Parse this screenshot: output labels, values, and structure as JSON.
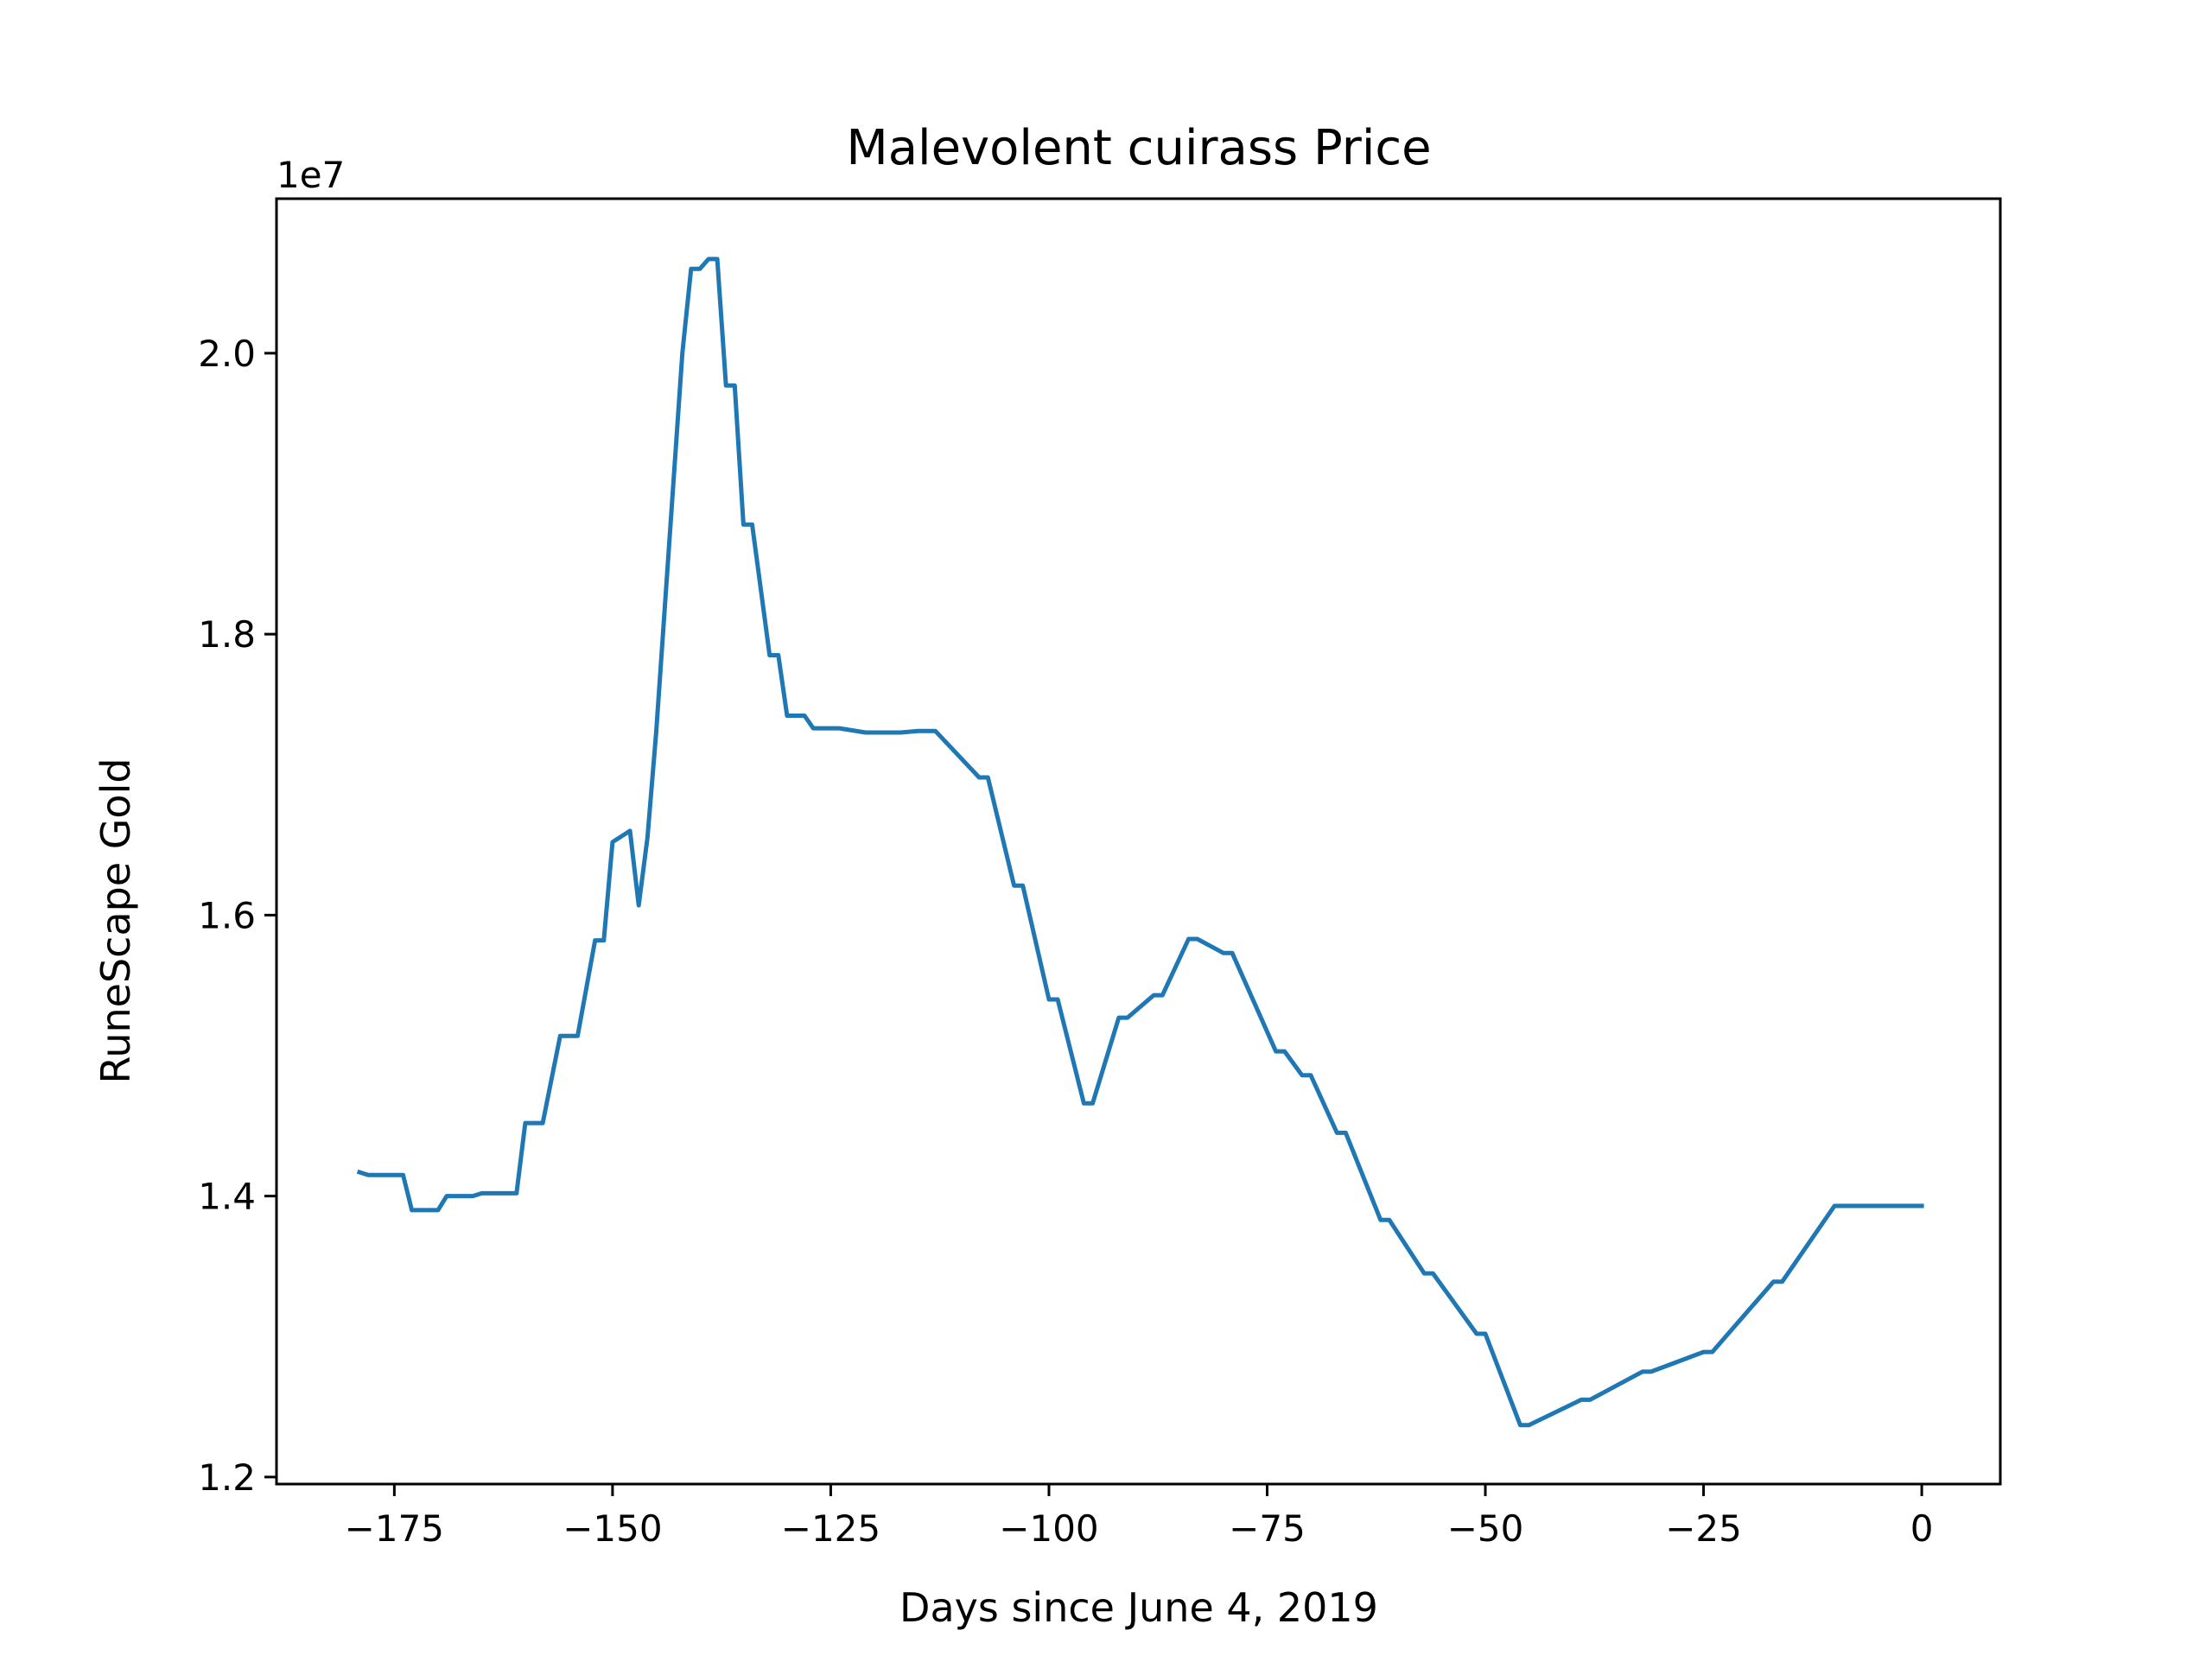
{
  "chart_data": {
    "type": "line",
    "title": "Malevolent cuirass Price",
    "xlabel": "Days since June 4, 2019",
    "ylabel": "RuneScape Gold",
    "y_offset_label": "1e7",
    "y_multiplier": 10000000,
    "xlim": [
      -188.5,
      9
    ],
    "ylim": [
      1.195,
      2.11
    ],
    "xticks": [
      -175,
      -150,
      -125,
      -100,
      -75,
      -50,
      -25,
      0
    ],
    "xtick_labels": [
      "−175",
      "−150",
      "−125",
      "−100",
      "−75",
      "−50",
      "−25",
      "0"
    ],
    "yticks": [
      1.2,
      1.4,
      1.6,
      1.8,
      2.0
    ],
    "ytick_labels": [
      "1.2",
      "1.4",
      "1.6",
      "1.8",
      "2.0"
    ],
    "grid": false,
    "legend": false,
    "line_color": "#1f77b4",
    "series": [
      {
        "x": [
          -179,
          -178,
          -177,
          -174,
          -173,
          -171,
          -170,
          -169,
          -166,
          -165,
          -164,
          -162,
          -161,
          -160,
          -159,
          -158,
          -156,
          -155,
          -154,
          -152,
          -151,
          -150,
          -148,
          -147,
          -146,
          -145,
          -144,
          -143,
          -142,
          -141,
          -140,
          -139,
          -138,
          -137,
          -136,
          -135,
          -134,
          -132,
          -131,
          -130,
          -128,
          -127,
          -126,
          -124,
          -121,
          -120,
          -119,
          -117,
          -115,
          -114,
          -113,
          -108,
          -107,
          -104,
          -103,
          -100,
          -99,
          -96,
          -95,
          -92,
          -91,
          -88,
          -87,
          -84,
          -83,
          -80,
          -79,
          -74,
          -73,
          -71,
          -70,
          -67,
          -66,
          -62,
          -61,
          -57,
          -56,
          -51,
          -50,
          -46,
          -45,
          -39,
          -38,
          -32,
          -31,
          -25,
          -24,
          -17,
          -16,
          -10,
          -9,
          -4,
          -3,
          0
        ],
        "y": [
          1.417,
          1.415,
          1.415,
          1.415,
          1.39,
          1.39,
          1.39,
          1.4,
          1.4,
          1.402,
          1.402,
          1.402,
          1.402,
          1.452,
          1.452,
          1.452,
          1.514,
          1.514,
          1.514,
          1.582,
          1.582,
          1.652,
          1.66,
          1.607,
          1.655,
          1.73,
          1.82,
          1.91,
          2.0,
          2.06,
          2.06,
          2.067,
          2.067,
          1.977,
          1.977,
          1.878,
          1.878,
          1.785,
          1.785,
          1.742,
          1.742,
          1.733,
          1.733,
          1.733,
          1.73,
          1.73,
          1.73,
          1.73,
          1.731,
          1.731,
          1.731,
          1.698,
          1.698,
          1.621,
          1.621,
          1.54,
          1.54,
          1.466,
          1.466,
          1.527,
          1.527,
          1.543,
          1.543,
          1.583,
          1.583,
          1.573,
          1.573,
          1.503,
          1.503,
          1.486,
          1.486,
          1.445,
          1.445,
          1.383,
          1.383,
          1.345,
          1.345,
          1.302,
          1.302,
          1.237,
          1.237,
          1.255,
          1.255,
          1.275,
          1.275,
          1.289,
          1.289,
          1.339,
          1.339,
          1.393,
          1.393,
          1.393,
          1.393,
          1.393
        ]
      }
    ]
  }
}
